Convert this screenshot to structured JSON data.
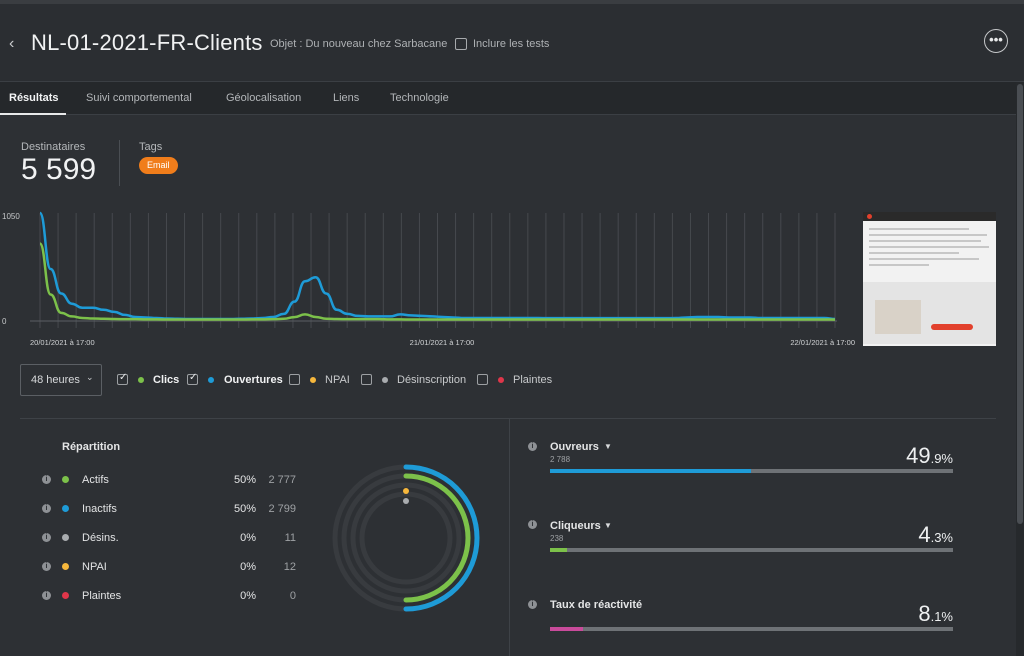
{
  "header": {
    "back_icon": "chevron-left-icon",
    "title": "NL-01-2021-FR-Clients",
    "subject": "Objet : Du nouveau chez Sarbacane",
    "include_tests_label": "Inclure les tests",
    "include_tests_checked": false,
    "more_icon": "ellipsis-icon"
  },
  "tabs": [
    "Résultats",
    "Suivi comportemental",
    "Géolocalisation",
    "Liens",
    "Technologie"
  ],
  "active_tab": "Résultats",
  "summary": {
    "recipients_label": "Destinataires",
    "recipients_value": "5 599",
    "tags_label": "Tags",
    "tag": "Email",
    "tag_color": "#f07d1b"
  },
  "chart_data": {
    "type": "line",
    "y_ticks": [
      "1050",
      "0"
    ],
    "x_ticks": [
      "20/01/2021 à 17:00",
      "21/01/2021 à 17:00",
      "22/01/2021 à 17:00"
    ],
    "ylim": [
      0,
      1050
    ],
    "series": [
      {
        "name": "Clics",
        "color": "#7cc14a",
        "values": [
          750,
          250,
          70,
          35,
          20,
          15,
          12,
          10,
          8,
          8,
          6,
          6,
          5,
          5,
          5,
          5,
          5,
          5,
          5,
          5,
          6,
          6,
          8,
          12,
          28,
          55,
          30,
          12,
          10,
          8,
          8,
          8,
          8,
          6,
          6,
          5,
          5,
          5,
          5,
          5,
          5,
          5,
          5,
          5,
          5,
          5,
          5,
          5,
          5,
          5,
          5,
          5,
          5,
          5,
          5,
          5,
          5,
          5,
          5,
          5,
          5,
          5,
          5,
          5,
          5,
          5,
          5,
          5,
          5,
          5,
          5,
          5,
          5,
          5,
          5,
          4
        ]
      },
      {
        "name": "Ouvertures",
        "color": "#1e9bd7",
        "values": [
          1050,
          500,
          260,
          160,
          120,
          120,
          100,
          80,
          50,
          30,
          25,
          20,
          15,
          12,
          10,
          10,
          10,
          10,
          10,
          12,
          15,
          20,
          30,
          60,
          180,
          380,
          420,
          260,
          100,
          60,
          40,
          35,
          35,
          35,
          55,
          45,
          40,
          35,
          30,
          25,
          20,
          20,
          20,
          20,
          20,
          20,
          20,
          20,
          18,
          18,
          18,
          18,
          18,
          18,
          18,
          18,
          18,
          18,
          18,
          18,
          20,
          25,
          30,
          30,
          30,
          25,
          25,
          25,
          20,
          20,
          20,
          20,
          20,
          20,
          20,
          10
        ]
      }
    ]
  },
  "legend": {
    "period": "48 heures",
    "items": [
      {
        "label": "Clics",
        "color": "#7cc14a",
        "checked": true
      },
      {
        "label": "Ouvertures",
        "color": "#1e9bd7",
        "checked": true
      },
      {
        "label": "NPAI",
        "color": "#f6b73c",
        "checked": false
      },
      {
        "label": "Désinscription",
        "color": "#a9acaf",
        "checked": false
      },
      {
        "label": "Plaintes",
        "color": "#e0364a",
        "checked": false
      }
    ]
  },
  "repartition": {
    "title": "Répartition",
    "rows": [
      {
        "label": "Actifs",
        "color": "#7cc14a",
        "pct": "50%",
        "count": "2 777"
      },
      {
        "label": "Inactifs",
        "color": "#1e9bd7",
        "pct": "50%",
        "count": "2 799"
      },
      {
        "label": "Désins.",
        "color": "#a9acaf",
        "pct": "0%",
        "count": "11"
      },
      {
        "label": "NPAI",
        "color": "#f6b73c",
        "pct": "0%",
        "count": "12"
      },
      {
        "label": "Plaintes",
        "color": "#e0364a",
        "pct": "0%",
        "count": "0"
      }
    ],
    "donut_fractions": {
      "Inactifs": 0.5,
      "Actifs": 0.5
    }
  },
  "stats": [
    {
      "label": "Ouvreurs",
      "sub": "2 788",
      "value_int": "49",
      "value_dec": ".9%",
      "fraction": 0.499,
      "color": "#1e9bd7",
      "dropdown": true
    },
    {
      "label": "Cliqueurs",
      "sub": "238",
      "value_int": "4",
      "value_dec": ".3%",
      "fraction": 0.043,
      "color": "#7cc14a",
      "dropdown": true
    },
    {
      "label": "Taux de réactivité",
      "sub": "",
      "value_int": "8",
      "value_dec": ".1%",
      "fraction": 0.081,
      "color": "#c94b9b",
      "dropdown": false
    }
  ]
}
